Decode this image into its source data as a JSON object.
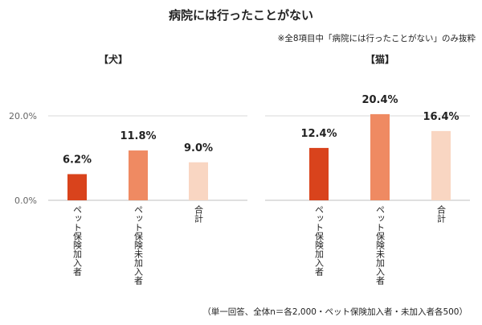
{
  "title": "病院には行ったことがない",
  "note": "※全8項目中「病院には行ったことがない」のみ抜粋",
  "footnote": "（単一回答、全体n＝各2,000・ペット保険加入者・未加入者各500）",
  "chart_data": [
    {
      "type": "bar",
      "title": "【犬】",
      "categories": [
        "ペット保険加入者",
        "ペット保険未加入者",
        "合計"
      ],
      "values": [
        6.2,
        11.8,
        9.0
      ],
      "value_labels": [
        "6.2%",
        "11.8%",
        "9.0%"
      ],
      "colors": [
        "#d9431c",
        "#ef8a62",
        "#f9d6c2"
      ],
      "yticks": [
        "0.0%",
        "20.0%"
      ],
      "ylim": [
        0,
        20
      ],
      "grid": true
    },
    {
      "type": "bar",
      "title": "【猫】",
      "categories": [
        "ペット保険加入者",
        "ペット保険未加入者",
        "合計"
      ],
      "values": [
        12.4,
        20.4,
        16.4
      ],
      "value_labels": [
        "12.4%",
        "20.4%",
        "16.4%"
      ],
      "colors": [
        "#d9431c",
        "#ef8a62",
        "#f9d6c2"
      ],
      "yticks": [
        "0.0%",
        "20.0%"
      ],
      "ylim": [
        0,
        20
      ],
      "grid": true
    }
  ]
}
